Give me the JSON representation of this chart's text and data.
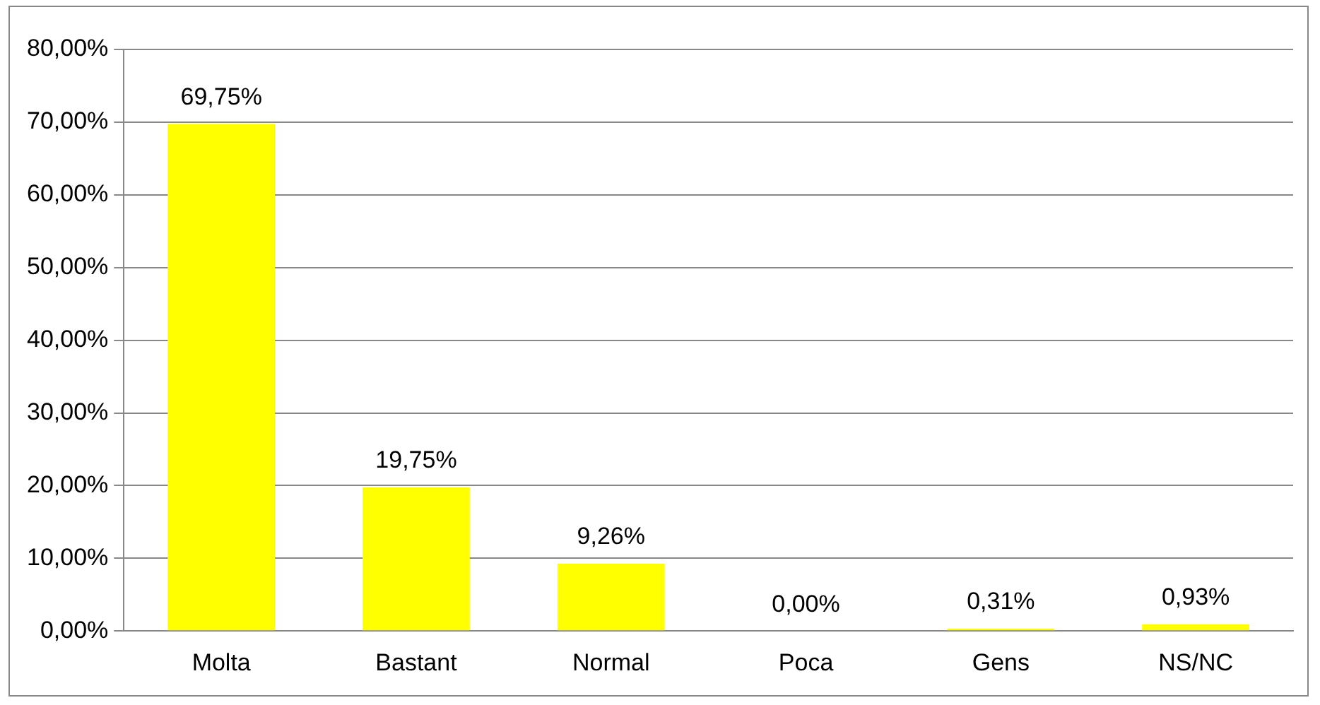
{
  "chart_data": {
    "type": "bar",
    "categories": [
      "Molta",
      "Bastant",
      "Normal",
      "Poca",
      "Gens",
      "NS/NC"
    ],
    "values": [
      69.75,
      19.75,
      9.26,
      0,
      0.31,
      0.93
    ],
    "value_labels": [
      "69,75%",
      "19,75%",
      "9,26%",
      "0,00%",
      "0,31%",
      "0,93%"
    ],
    "color": "#ffff00",
    "ylim": [
      0,
      80
    ],
    "yticks": [
      {
        "value": 0,
        "label": "0,00%"
      },
      {
        "value": 10,
        "label": "10,00%"
      },
      {
        "value": 20,
        "label": "20,00%"
      },
      {
        "value": 30,
        "label": "30,00%"
      },
      {
        "value": 40,
        "label": "40,00%"
      },
      {
        "value": 50,
        "label": "50,00%"
      },
      {
        "value": 60,
        "label": "60,00%"
      },
      {
        "value": 70,
        "label": "70,00%"
      },
      {
        "value": 80,
        "label": "80,00%"
      }
    ],
    "grid": "y",
    "legend": false
  }
}
